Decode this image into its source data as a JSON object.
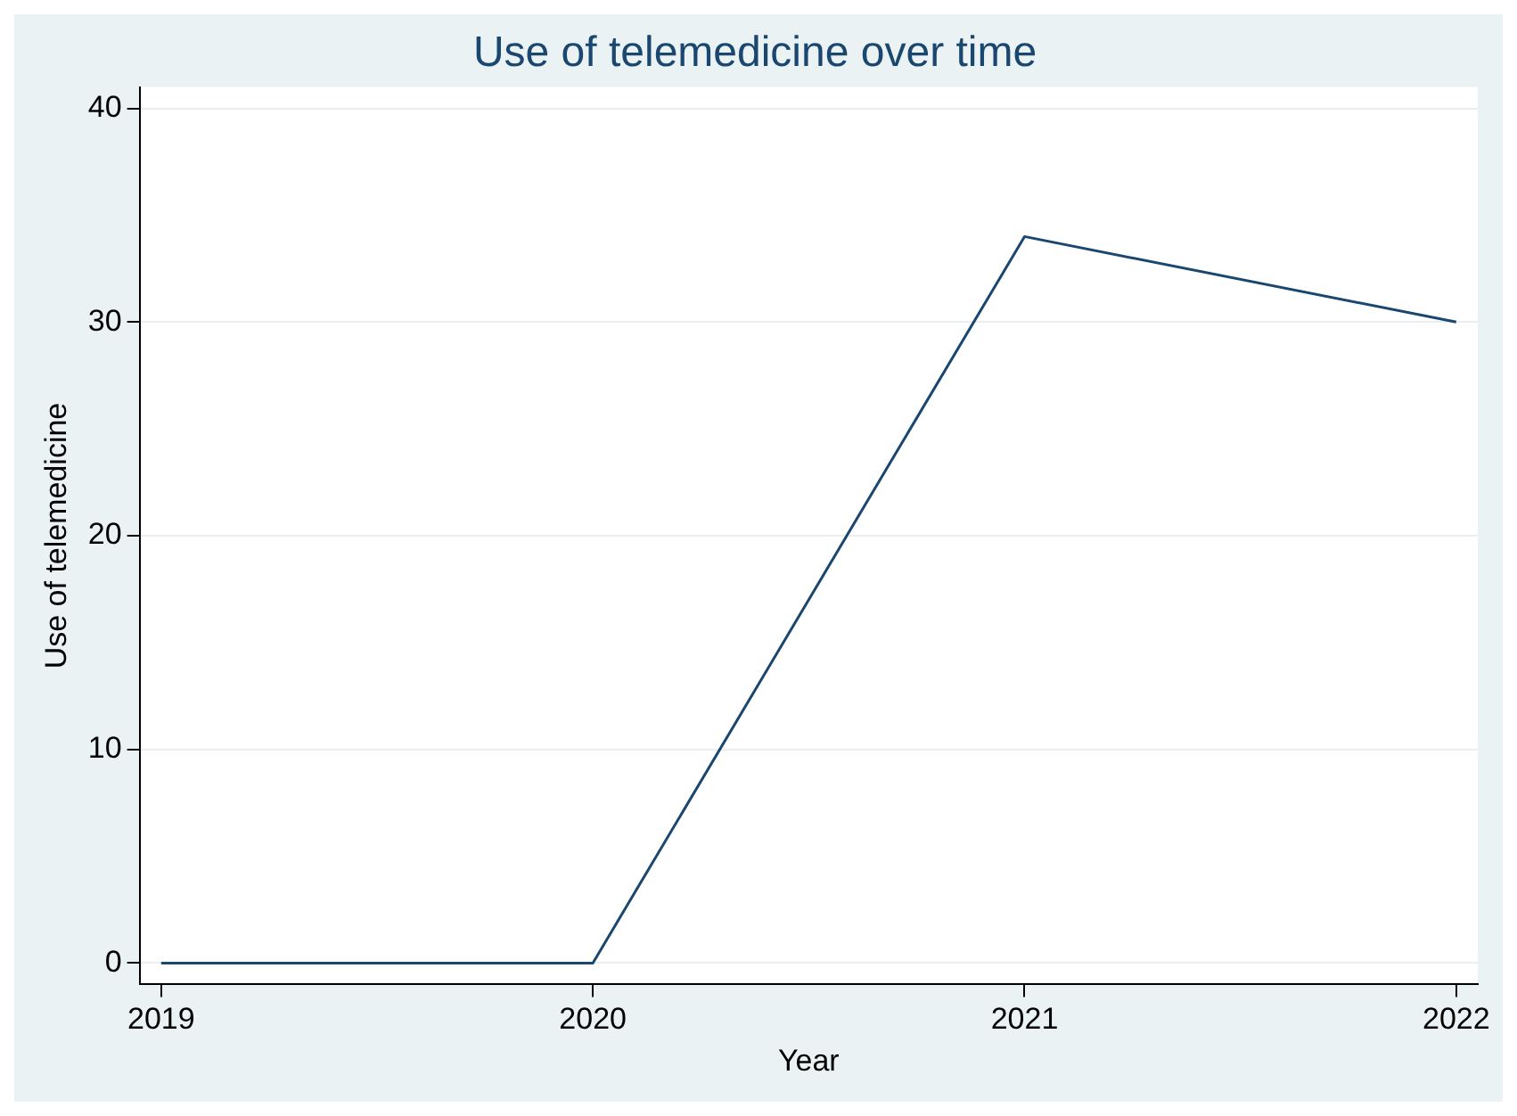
{
  "chart_data": {
    "type": "line",
    "title": "Use of telemedicine over time",
    "xlabel": "Year",
    "ylabel": "Use of telemedicine",
    "x": [
      2019,
      2020,
      2021,
      2022
    ],
    "series": [
      {
        "color": "#1a476f",
        "values": [
          0,
          0,
          34,
          30
        ]
      }
    ],
    "xlim": [
      2018.95,
      2022.05
    ],
    "xticks": [
      2019,
      2020,
      2021,
      2022
    ],
    "ylim": [
      -1,
      41
    ],
    "yticks": [
      0,
      10,
      20,
      30,
      40
    ],
    "grid": "y",
    "legend": false,
    "marker": "none",
    "line_style": "solid"
  }
}
